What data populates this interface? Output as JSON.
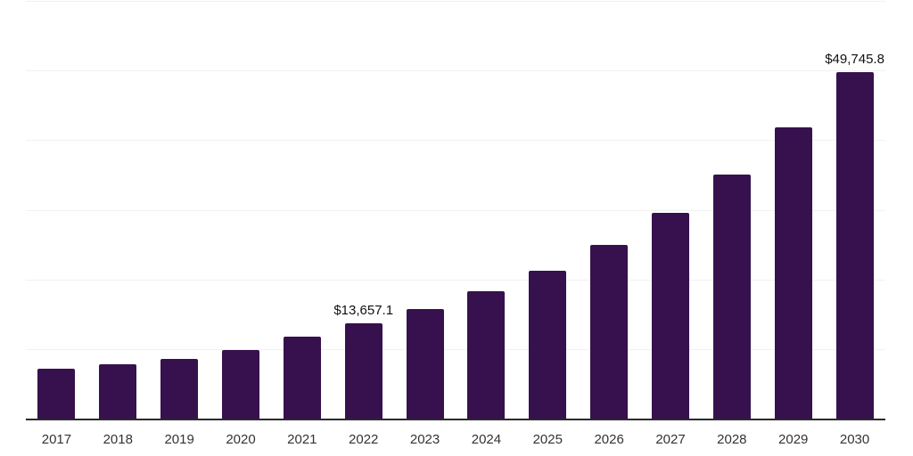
{
  "chart_data": {
    "type": "bar",
    "title": "",
    "xlabel": "",
    "ylabel": "",
    "categories": [
      "2017",
      "2018",
      "2019",
      "2020",
      "2021",
      "2022",
      "2023",
      "2024",
      "2025",
      "2026",
      "2027",
      "2028",
      "2029",
      "2030"
    ],
    "values": [
      7200,
      7800,
      8600,
      9900,
      11800,
      13657.1,
      15700,
      18250,
      21300,
      25000,
      29500,
      35000,
      41800,
      49745.8
    ],
    "data_labels": [
      "",
      "",
      "",
      "",
      "",
      "$13,657.1",
      "",
      "",
      "",
      "",
      "",
      "",
      "",
      "$49,745.8"
    ],
    "ylim": [
      0,
      60000
    ],
    "gridline_step": 10000,
    "grid": "horizontal",
    "legend": "none",
    "colors": {
      "bar": "#36114d",
      "gridline": "#f1f1f1",
      "axis_line": "#2b2b2b",
      "tick_label": "#333333",
      "data_label": "#111111",
      "background": "#ffffff"
    }
  }
}
